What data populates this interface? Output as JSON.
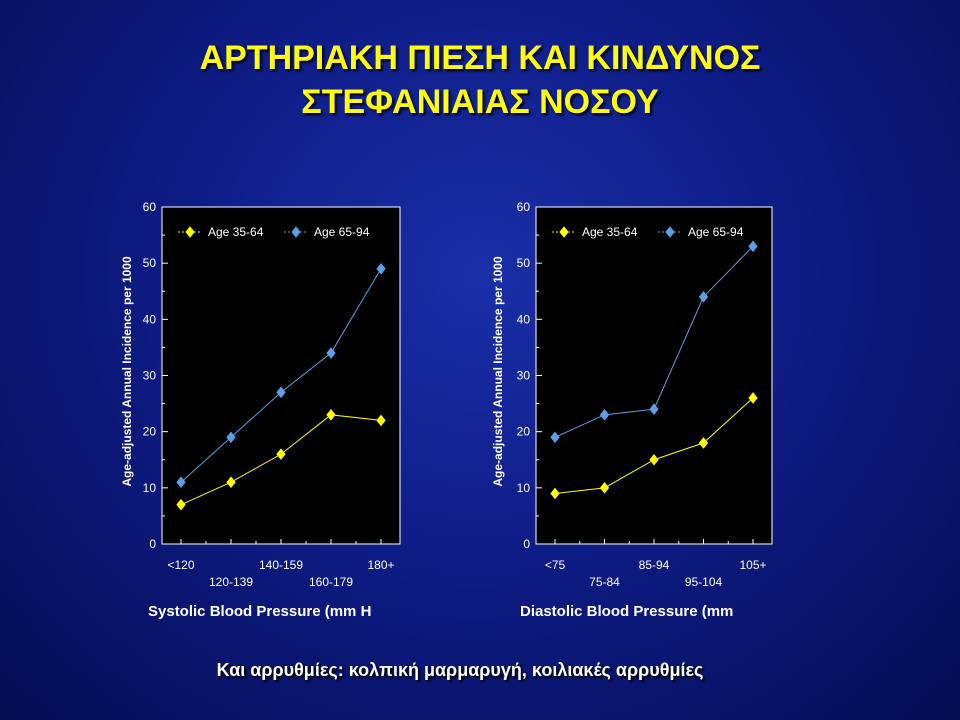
{
  "slide": {
    "title_line1": "ΑΡΤΗΡΙΑΚΗ ΠΙΕΣΗ ΚΑΙ ΚΙΝΔΥΝΟΣ",
    "title_line2": "ΣΤΕΦΑΝΙΑΙΑΣ ΝΟΣΟΥ",
    "footer": "Και αρρυθμίες: κολπική μαρμαρυγή, κοιλιακές αρρυθμίες"
  },
  "colors": {
    "series_young": "#ffff00",
    "series_old": "#5aa0e8",
    "axis_text": "#ffffff",
    "plot_bg": "#000000"
  },
  "chart_data": [
    {
      "type": "line",
      "categories": [
        "<120",
        "120-139",
        "140-159",
        "160-179",
        "180+"
      ],
      "series": [
        {
          "name": "Age 35-64",
          "values": [
            7,
            11,
            16,
            23,
            22
          ]
        },
        {
          "name": "Age 65-94",
          "values": [
            11,
            19,
            27,
            34,
            49
          ]
        }
      ],
      "xlabel": "Systolic Blood Pressure (mm H",
      "ylabel": "Age-adjusted Annual Incidence per 1000",
      "ylim": [
        0,
        60
      ],
      "yticks": [
        0,
        10,
        20,
        30,
        40,
        50,
        60
      ],
      "grid": false,
      "legend": "top"
    },
    {
      "type": "line",
      "categories": [
        "<75",
        "75-84",
        "85-94",
        "95-104",
        "105+"
      ],
      "series": [
        {
          "name": "Age 35-64",
          "values": [
            9,
            10,
            15,
            18,
            26
          ]
        },
        {
          "name": "Age 65-94",
          "values": [
            19,
            23,
            24,
            44,
            53
          ]
        }
      ],
      "xlabel": "Diastolic Blood Pressure (mm",
      "ylabel": "Age-adjusted Annual Incidence per 1000",
      "ylim": [
        0,
        60
      ],
      "yticks": [
        0,
        10,
        20,
        30,
        40,
        50,
        60
      ],
      "grid": false,
      "legend": "top"
    }
  ]
}
